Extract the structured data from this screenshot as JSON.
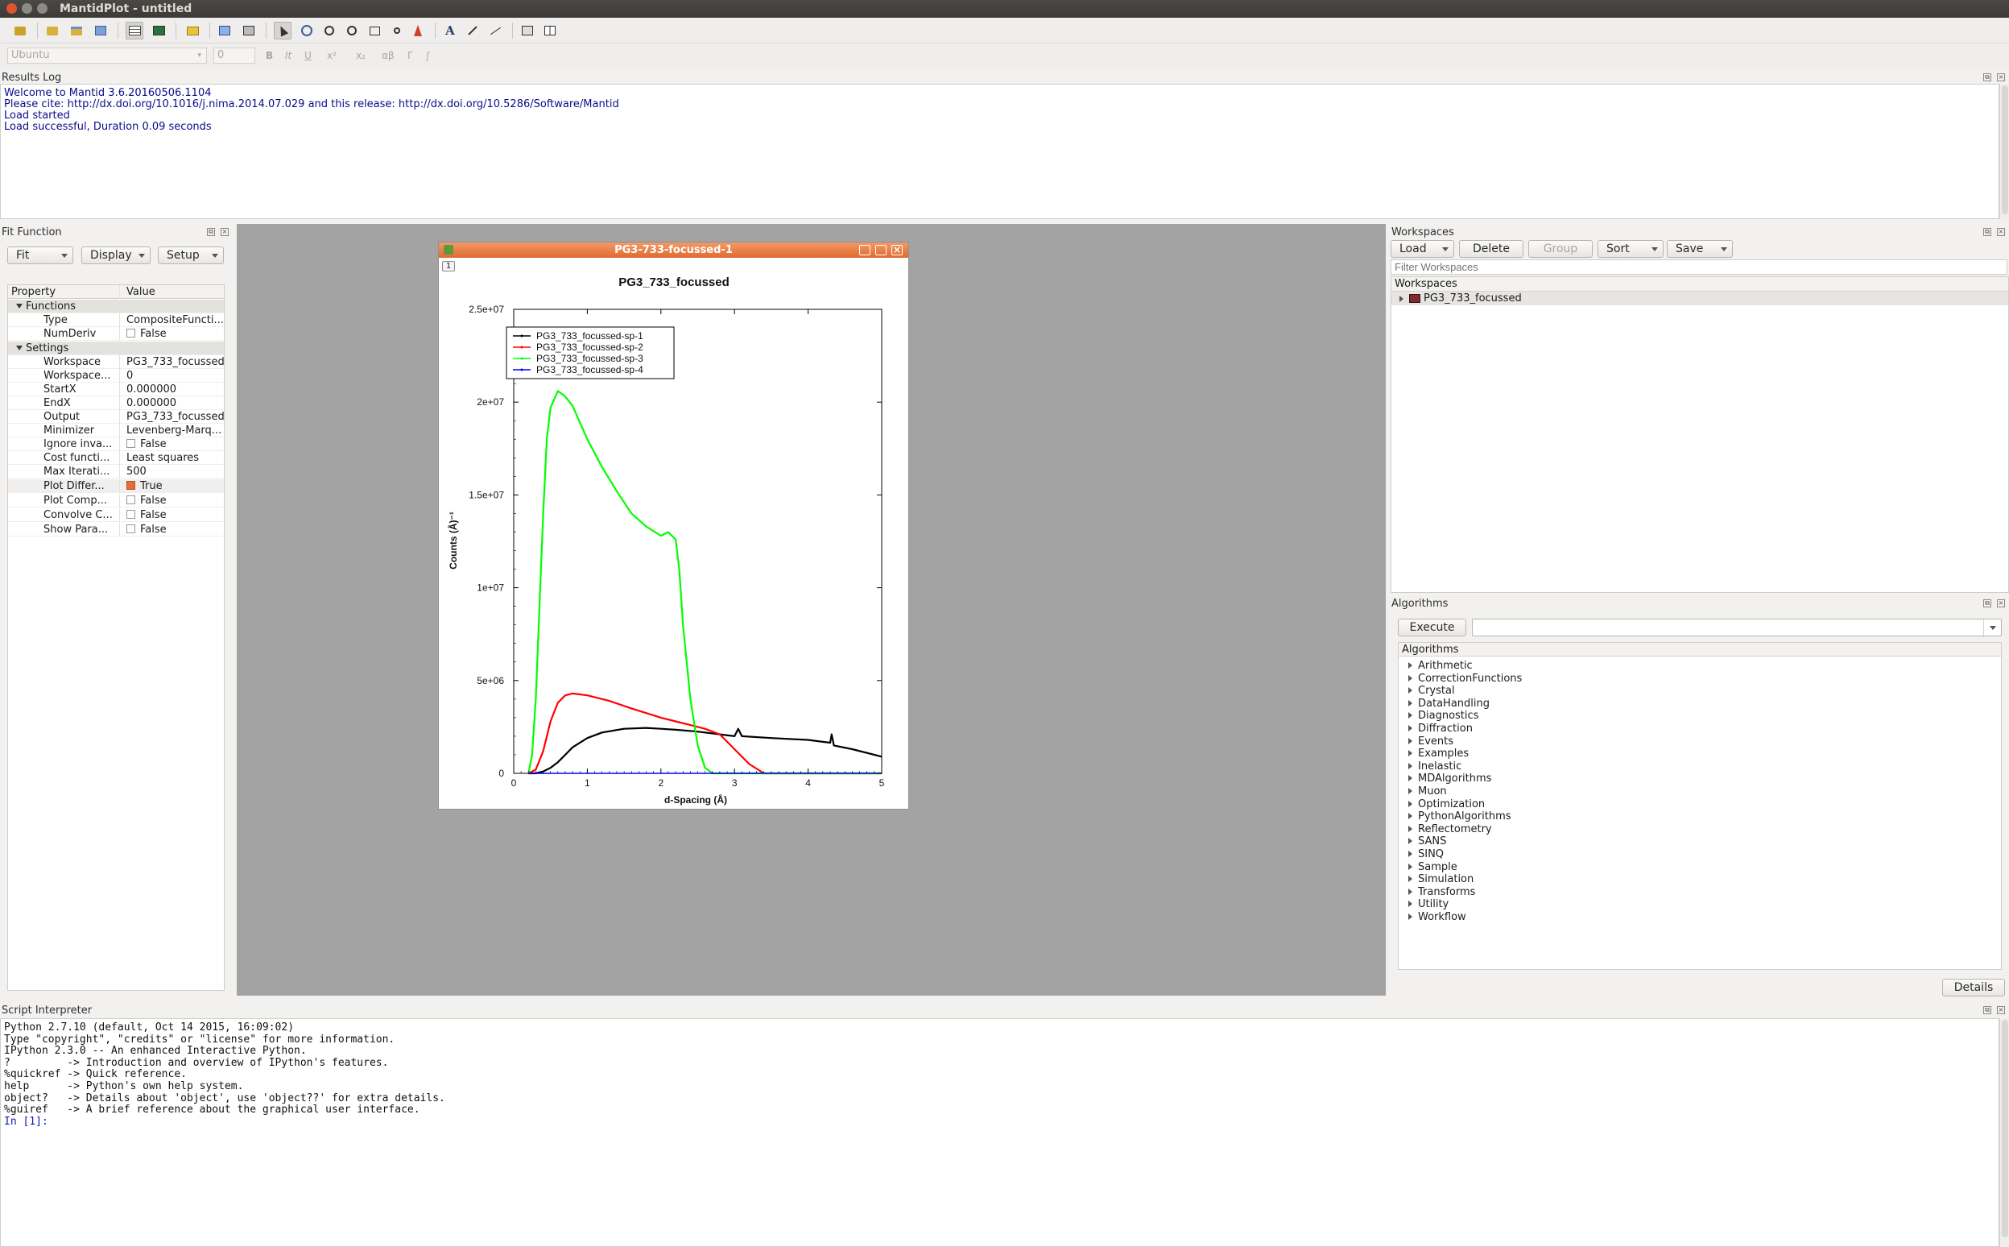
{
  "app": {
    "title": "MantidPlot - untitled"
  },
  "toolbar2": {
    "font": "Ubuntu",
    "size": "0",
    "items": [
      "B",
      "It",
      "U",
      "x²",
      "x₂",
      "αβ",
      "Γ",
      "∫"
    ]
  },
  "results_log": {
    "title": "Results Log",
    "lines": [
      "Welcome to Mantid 3.6.20160506.1104",
      "Please cite: http://dx.doi.org/10.1016/j.nima.2014.07.029 and this release: http://dx.doi.org/10.5286/Software/Mantid",
      "Load started",
      "Load successful, Duration 0.09 seconds"
    ]
  },
  "fit_function": {
    "title": "Fit Function",
    "buttons": {
      "fit": "Fit",
      "display": "Display",
      "setup": "Setup"
    },
    "header": {
      "property": "Property",
      "value": "Value"
    },
    "groups": {
      "functions": "Functions",
      "settings": "Settings"
    },
    "rows": [
      {
        "key": "Type",
        "value": "CompositeFuncti..."
      },
      {
        "key": "NumDeriv",
        "value": "False"
      },
      {
        "key": "Workspace",
        "value": "PG3_733_focussed"
      },
      {
        "key": "Workspace...",
        "value": "0"
      },
      {
        "key": "StartX",
        "value": "0.000000"
      },
      {
        "key": "EndX",
        "value": "0.000000"
      },
      {
        "key": "Output",
        "value": "PG3_733_focussed"
      },
      {
        "key": "Minimizer",
        "value": "Levenberg-Marq..."
      },
      {
        "key": "Ignore inva...",
        "value": "False"
      },
      {
        "key": "Cost functi...",
        "value": "Least squares"
      },
      {
        "key": "Max Iterati...",
        "value": "500"
      },
      {
        "key": "Plot Differ...",
        "value": "True"
      },
      {
        "key": "Plot Comp...",
        "value": "False"
      },
      {
        "key": "Convolve C...",
        "value": "False"
      },
      {
        "key": "Show Para...",
        "value": "False"
      }
    ]
  },
  "plot_window": {
    "title": "PG3-733-focussed-1",
    "layer": "1",
    "chart_data": {
      "type": "line",
      "title": "PG3_733_focussed",
      "xlabel": "d-Spacing (Å)",
      "ylabel": "Counts (Å)⁻¹",
      "xlim": [
        0,
        5
      ],
      "ylim": [
        0,
        25000000
      ],
      "xticks": [
        "0",
        "1",
        "2",
        "3",
        "4",
        "5"
      ],
      "yticks": [
        "0",
        "5e+06",
        "1e+07",
        "1.5e+07",
        "2e+07",
        "2.5e+07"
      ],
      "legend_position": "top-left",
      "series": [
        {
          "name": "PG3_733_focussed-sp-1",
          "color": "#000000",
          "x": [
            0.2,
            0.3,
            0.4,
            0.5,
            0.6,
            0.7,
            0.8,
            1.0,
            1.2,
            1.5,
            1.8,
            2.0,
            2.2,
            2.5,
            2.8,
            3.0,
            3.05,
            3.1,
            3.5,
            4.0,
            4.3,
            4.32,
            4.35,
            4.6,
            5.0
          ],
          "y": [
            0,
            0,
            100000,
            300000,
            600000,
            1000000,
            1400000,
            1900000,
            2200000,
            2400000,
            2450000,
            2400000,
            2350000,
            2250000,
            2100000,
            2000000,
            2400000,
            2000000,
            1900000,
            1800000,
            1650000,
            2100000,
            1500000,
            1300000,
            900000
          ]
        },
        {
          "name": "PG3_733_focussed-sp-2",
          "color": "#ff0000",
          "x": [
            0.2,
            0.3,
            0.4,
            0.5,
            0.6,
            0.7,
            0.8,
            1.0,
            1.3,
            1.6,
            2.0,
            2.2,
            2.4,
            2.6,
            2.8,
            3.0,
            3.2,
            3.4,
            5.0
          ],
          "y": [
            0,
            200000,
            1200000,
            2800000,
            3800000,
            4200000,
            4300000,
            4200000,
            3900000,
            3500000,
            3000000,
            2800000,
            2600000,
            2400000,
            2100000,
            1300000,
            500000,
            0,
            0
          ]
        },
        {
          "name": "PG3_733_focussed-sp-3",
          "color": "#00ff00",
          "x": [
            0.2,
            0.25,
            0.3,
            0.35,
            0.4,
            0.45,
            0.5,
            0.6,
            0.7,
            0.8,
            1.0,
            1.2,
            1.4,
            1.6,
            1.8,
            2.0,
            2.1,
            2.2,
            2.25,
            2.3,
            2.4,
            2.5,
            2.6,
            2.7,
            5.0
          ],
          "y": [
            0,
            1000000,
            4000000,
            9000000,
            14000000,
            18000000,
            19700000,
            20600000,
            20300000,
            19800000,
            18000000,
            16500000,
            15200000,
            14000000,
            13300000,
            12800000,
            13000000,
            12600000,
            11000000,
            8000000,
            4000000,
            1500000,
            300000,
            0,
            0
          ]
        },
        {
          "name": "PG3_733_focussed-sp-4",
          "color": "#0000ff",
          "x": [
            0.2,
            5.0
          ],
          "y": [
            0,
            0
          ]
        }
      ]
    }
  },
  "workspaces": {
    "title": "Workspaces",
    "buttons": {
      "load": "Load",
      "delete": "Delete",
      "group": "Group",
      "sort": "Sort",
      "save": "Save"
    },
    "filter_placeholder": "Filter Workspaces",
    "tree_header": "Workspaces",
    "items": [
      "PG3_733_focussed"
    ]
  },
  "algorithms": {
    "title": "Algorithms",
    "execute": "Execute",
    "tree_header": "Algorithms",
    "items": [
      "Arithmetic",
      "CorrectionFunctions",
      "Crystal",
      "DataHandling",
      "Diagnostics",
      "Diffraction",
      "Events",
      "Examples",
      "Inelastic",
      "MDAlgorithms",
      "Muon",
      "Optimization",
      "PythonAlgorithms",
      "Reflectometry",
      "SANS",
      "SINQ",
      "Sample",
      "Simulation",
      "Transforms",
      "Utility",
      "Workflow"
    ],
    "details": "Details"
  },
  "script_interpreter": {
    "title": "Script Interpreter",
    "lines": [
      "Python 2.7.10 (default, Oct 14 2015, 16:09:02)",
      "Type \"copyright\", \"credits\" or \"license\" for more information.",
      "",
      "IPython 2.3.0 -- An enhanced Interactive Python.",
      "?         -> Introduction and overview of IPython's features.",
      "%quickref -> Quick reference.",
      "help      -> Python's own help system.",
      "object?   -> Details about 'object', use 'object??' for extra details.",
      "%guiref   -> A brief reference about the graphical user interface.",
      ""
    ],
    "prompt": "In [1]:"
  }
}
